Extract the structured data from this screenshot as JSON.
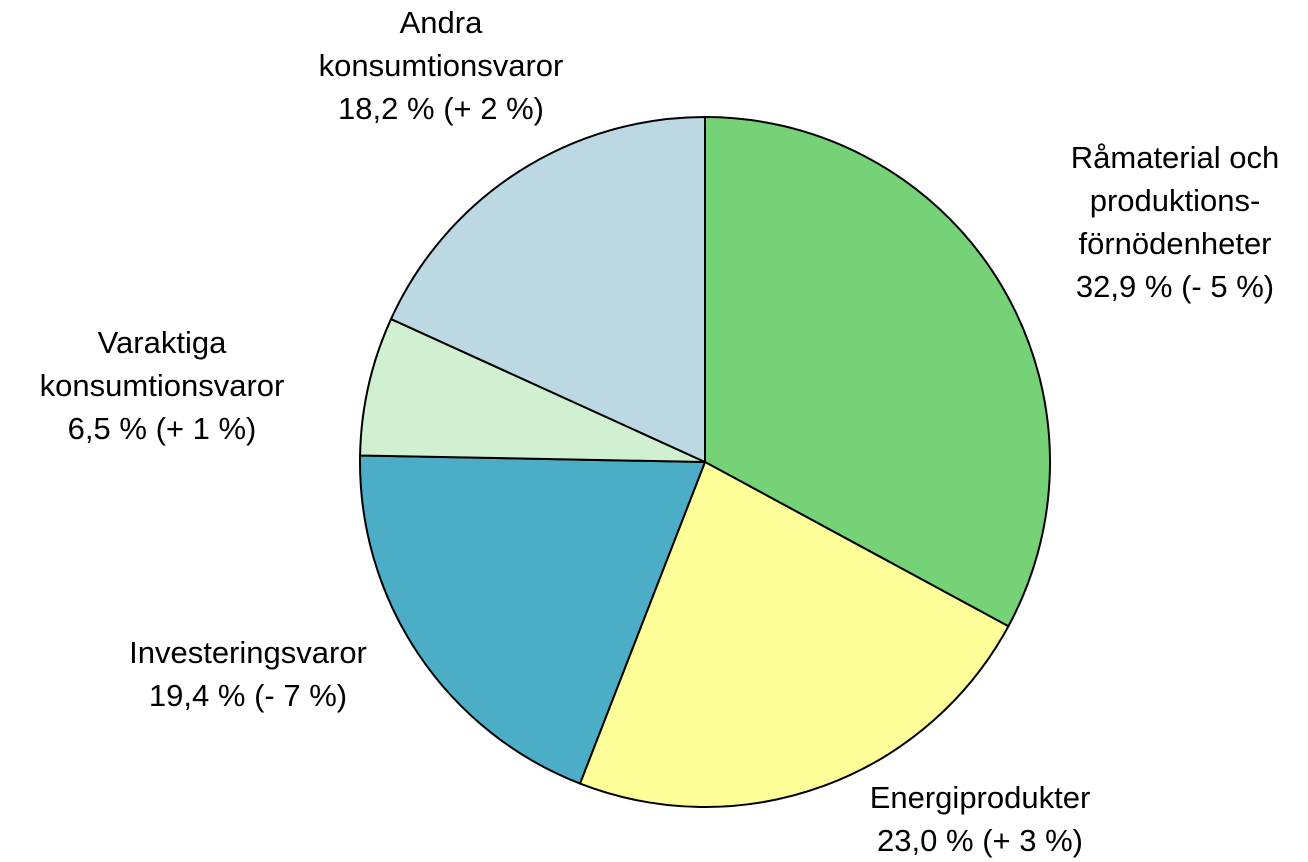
{
  "chart_data": {
    "type": "pie",
    "categories": [
      [
        "Råmaterial och",
        "produktions-",
        "förnödenheter"
      ],
      [
        "Energiprodukter"
      ],
      [
        "Investeringsvaror"
      ],
      [
        "Varaktiga",
        "konsumtionsvaror"
      ],
      [
        "Andra",
        "konsumtionsvaror"
      ]
    ],
    "values": [
      32.9,
      23.0,
      19.4,
      6.5,
      18.2
    ],
    "value_labels": [
      "32,9 %",
      "23,0 %",
      "19,4 %",
      "6,5 %",
      "18,2 %"
    ],
    "changes": [
      -5,
      3,
      -7,
      1,
      2
    ],
    "change_labels": [
      "(- 5 %)",
      "(+ 3 %)",
      "(- 7 %)",
      "(+ 1 %)",
      "(+ 2 %)"
    ],
    "colors": [
      "#76d277",
      "#ffff99",
      "#4badc6",
      "#d1efd1",
      "#bcd8e3"
    ]
  }
}
